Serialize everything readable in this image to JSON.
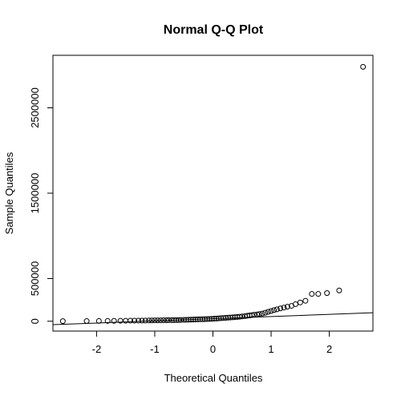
{
  "chart_data": {
    "type": "scatter",
    "title": "Normal Q-Q Plot",
    "xlabel": "Theoretical Quantiles",
    "ylabel": "Sample Quantiles",
    "xlim": [
      -2.75,
      2.75
    ],
    "ylim": [
      -115000,
      3115000
    ],
    "x_ticks": [
      -2,
      -1,
      0,
      1,
      2
    ],
    "x_tick_labels": [
      "-2",
      "-1",
      "0",
      "1",
      "2"
    ],
    "y_ticks": [
      0,
      500000,
      1500000,
      2500000
    ],
    "y_tick_labels": [
      "0",
      "500000",
      "1500000",
      "2500000"
    ],
    "grid": false,
    "legend": "none",
    "point_style": "open-circle",
    "reference_line": {
      "x": [
        -2.75,
        2.75
      ],
      "y": [
        -40000,
        100000
      ]
    },
    "series": [
      {
        "x": [
          -2.58,
          -2.17,
          -1.96,
          -1.81,
          -1.7,
          -1.59,
          -1.5,
          -1.42,
          -1.35,
          -1.28,
          -1.22,
          -1.16,
          -1.1,
          -1.05,
          -1.0,
          -0.95,
          -0.9,
          -0.85,
          -0.8,
          -0.76,
          -0.71,
          -0.67,
          -0.63,
          -0.59,
          -0.55,
          -0.5,
          -0.46,
          -0.42,
          -0.38,
          -0.34,
          -0.3,
          -0.26,
          -0.22,
          -0.18,
          -0.14,
          -0.1,
          -0.06,
          -0.02,
          0.02,
          0.06,
          0.1,
          0.14,
          0.18,
          0.22,
          0.26,
          0.3,
          0.34,
          0.38,
          0.42,
          0.46,
          0.5,
          0.55,
          0.59,
          0.63,
          0.67,
          0.71,
          0.76,
          0.8,
          0.85,
          0.9,
          0.95,
          1.0,
          1.05,
          1.1,
          1.16,
          1.22,
          1.28,
          1.35,
          1.42,
          1.5,
          1.59,
          1.7,
          1.81,
          1.96,
          2.17,
          2.58
        ],
        "y": [
          1000,
          2000,
          3000,
          4000,
          5000,
          5500,
          6000,
          6500,
          7000,
          7500,
          8000,
          8500,
          9000,
          9500,
          10000,
          10500,
          11000,
          11500,
          12000,
          12500,
          13000,
          13500,
          14000,
          14500,
          15000,
          16000,
          17000,
          18000,
          19000,
          20000,
          21000,
          22000,
          23000,
          24000,
          25000,
          26000,
          27000,
          28000,
          30000,
          32000,
          34000,
          36000,
          38000,
          40000,
          42000,
          44000,
          46000,
          48000,
          50000,
          53000,
          56000,
          60000,
          64000,
          68000,
          72000,
          76000,
          80000,
          85000,
          90000,
          100000,
          110000,
          120000,
          130000,
          140000,
          150000,
          160000,
          170000,
          180000,
          200000,
          220000,
          240000,
          320000,
          320000,
          330000,
          360000,
          2980000
        ]
      }
    ]
  }
}
